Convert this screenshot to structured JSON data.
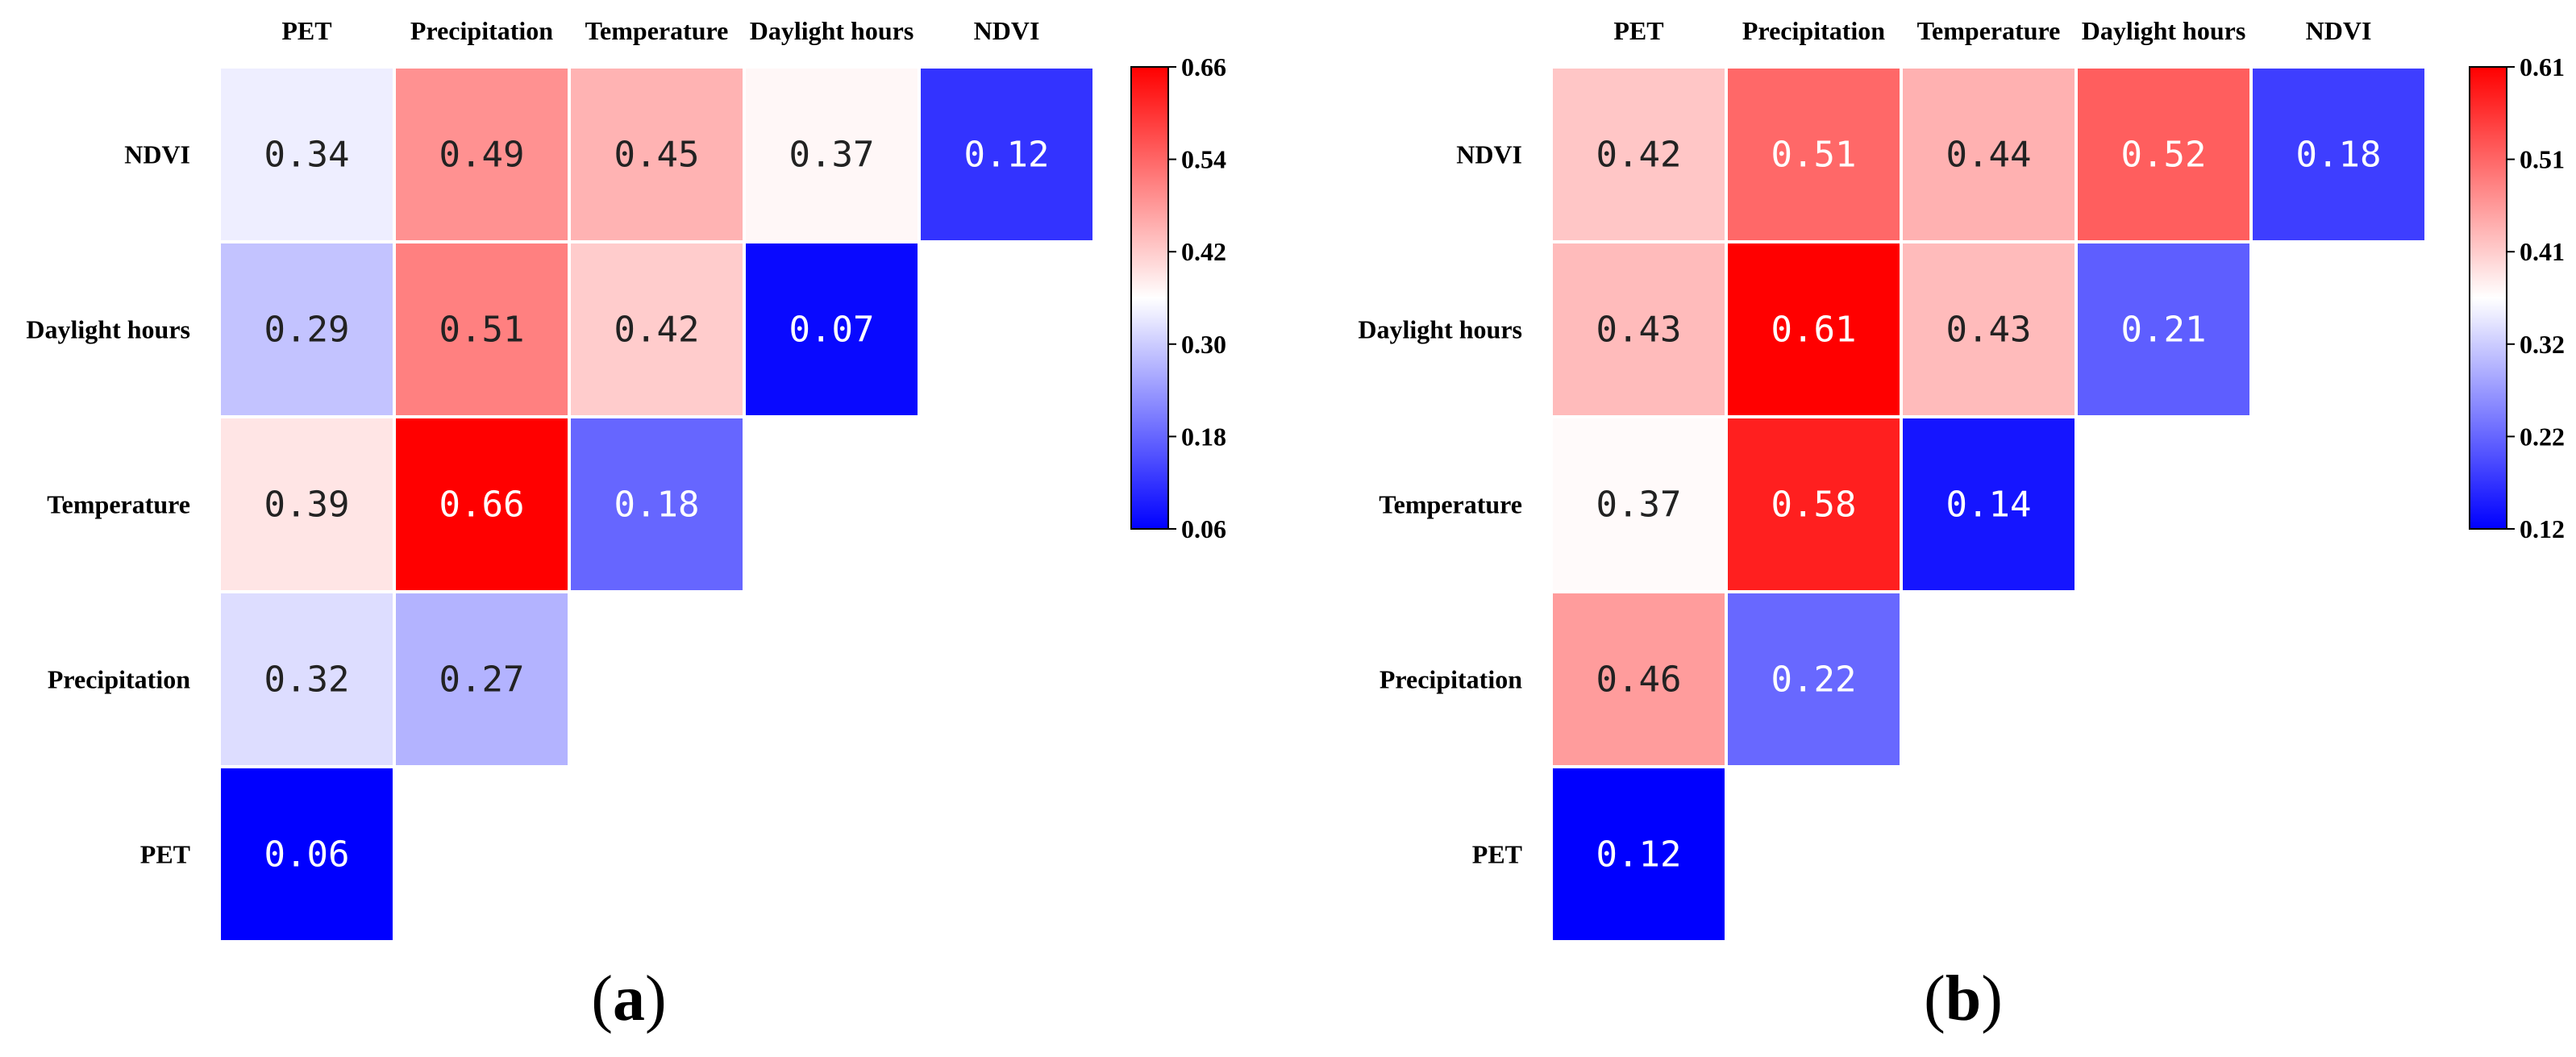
{
  "chart_data": [
    {
      "type": "heatmap",
      "panel_label": "a",
      "row_labels": [
        "NDVI",
        "Daylight hours",
        "Temperature",
        "Precipitation",
        "PET"
      ],
      "col_labels": [
        "PET",
        "Precipitation",
        "Temperature",
        "Daylight hours",
        "NDVI"
      ],
      "values": [
        [
          0.34,
          0.49,
          0.45,
          0.37,
          0.12
        ],
        [
          0.29,
          0.51,
          0.42,
          0.07,
          null
        ],
        [
          0.39,
          0.66,
          0.18,
          null,
          null
        ],
        [
          0.32,
          0.27,
          null,
          null,
          null
        ],
        [
          0.06,
          null,
          null,
          null,
          null
        ]
      ],
      "value_labels": [
        [
          "0.34",
          "0.49",
          "0.45",
          "0.37",
          "0.12"
        ],
        [
          "0.29",
          "0.51",
          "0.42",
          "0.07",
          null
        ],
        [
          "0.39",
          "0.66",
          "0.18",
          null,
          null
        ],
        [
          "0.32",
          "0.27",
          null,
          null,
          null
        ],
        [
          "0.06",
          null,
          null,
          null,
          null
        ]
      ],
      "colorbar": {
        "min": 0.06,
        "max": 0.66,
        "center": 0.36,
        "ticks": [
          "0.66",
          "0.54",
          "0.42",
          "0.30",
          "0.18",
          "0.06"
        ],
        "low_color": "#0000ff",
        "mid_color": "#ffffff",
        "high_color": "#ff0000"
      }
    },
    {
      "type": "heatmap",
      "panel_label": "b",
      "row_labels": [
        "NDVI",
        "Daylight hours",
        "Temperature",
        "Precipitation",
        "PET"
      ],
      "col_labels": [
        "PET",
        "Precipitation",
        "Temperature",
        "Daylight hours",
        "NDVI"
      ],
      "values": [
        [
          0.42,
          0.51,
          0.44,
          0.52,
          0.18
        ],
        [
          0.43,
          0.61,
          0.43,
          0.21,
          null
        ],
        [
          0.37,
          0.58,
          0.14,
          null,
          null
        ],
        [
          0.46,
          0.22,
          null,
          null,
          null
        ],
        [
          0.12,
          null,
          null,
          null,
          null
        ]
      ],
      "value_labels": [
        [
          "0.42",
          "0.51",
          "0.44",
          "0.52",
          "0.18"
        ],
        [
          "0.43",
          "0.61",
          "0.43",
          "0.21",
          null
        ],
        [
          "0.37",
          "0.58",
          "0.14",
          null,
          null
        ],
        [
          "0.46",
          "0.22",
          null,
          null,
          null
        ],
        [
          "0.12",
          null,
          null,
          null,
          null
        ]
      ],
      "colorbar": {
        "min": 0.12,
        "max": 0.61,
        "center": 0.365,
        "ticks": [
          "0.61",
          "0.51",
          "0.41",
          "0.32",
          "0.22",
          "0.12"
        ],
        "low_color": "#0000ff",
        "mid_color": "#ffffff",
        "high_color": "#ff0000"
      }
    }
  ]
}
